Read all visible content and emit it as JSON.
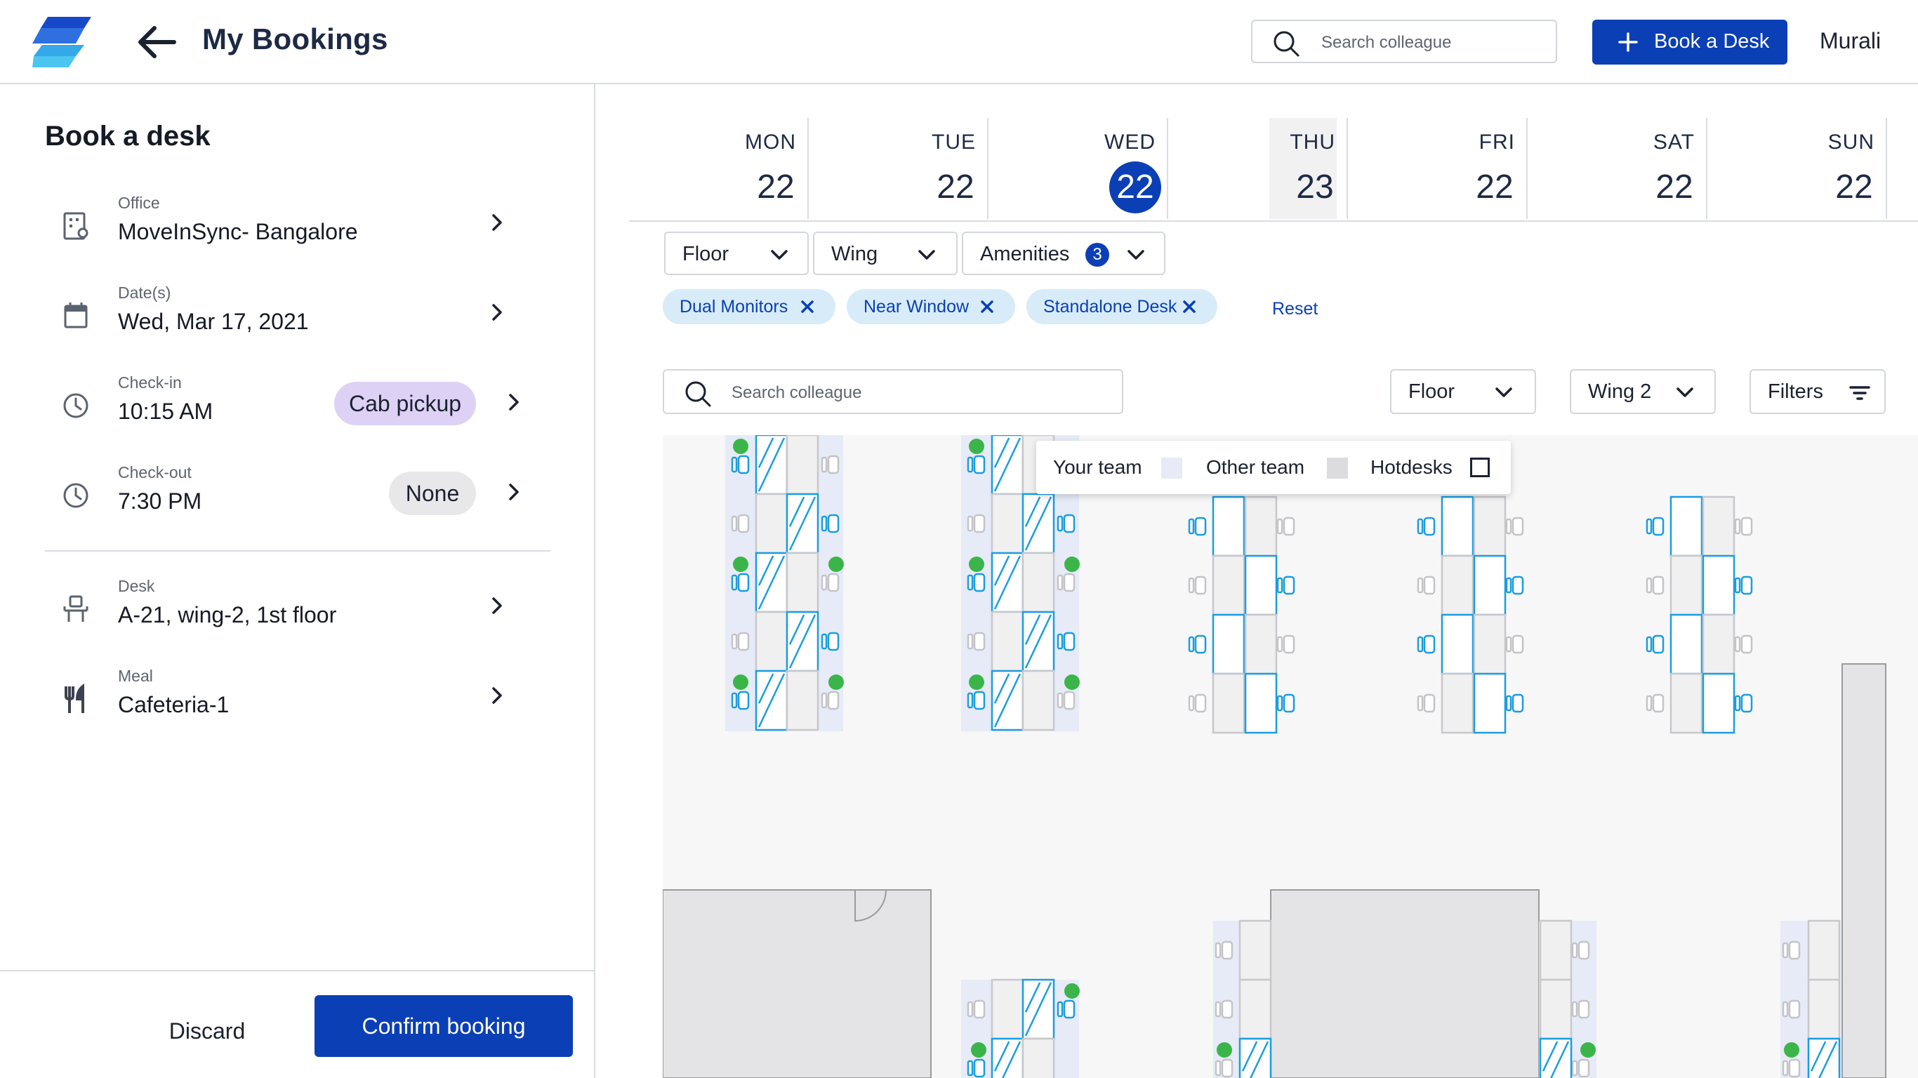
{
  "header": {
    "title": "My Bookings",
    "search_placeholder": "Search colleague",
    "book_desk_label": "Book a Desk",
    "user_name": "Murali"
  },
  "booking_form": {
    "title": "Book a desk",
    "office": {
      "label": "Office",
      "value": "MoveInSync- Bangalore"
    },
    "dates": {
      "label": "Date(s)",
      "value": "Wed, Mar 17, 2021"
    },
    "check_in": {
      "label": "Check-in",
      "value": "10:15 AM",
      "option": "Cab pickup"
    },
    "check_out": {
      "label": "Check-out",
      "value": "7:30 PM",
      "option": "None"
    },
    "desk": {
      "label": "Desk",
      "value": "A-21, wing-2, 1st floor"
    },
    "meal": {
      "label": "Meal",
      "value": "Cafeteria-1"
    },
    "discard_label": "Discard",
    "confirm_label": "Confirm booking"
  },
  "week": [
    {
      "day": "MON",
      "date": "22"
    },
    {
      "day": "TUE",
      "date": "22"
    },
    {
      "day": "WED",
      "date": "22",
      "selected": true
    },
    {
      "day": "THU",
      "date": "23",
      "today": true
    },
    {
      "day": "FRI",
      "date": "22"
    },
    {
      "day": "SAT",
      "date": "22"
    },
    {
      "day": "SUN",
      "date": "22"
    }
  ],
  "filters": {
    "floor_label": "Floor",
    "wing_label": "Wing",
    "amenities_label": "Amenities",
    "amenities_count": "3",
    "chips": [
      "Dual Monitors",
      "Near Window",
      "Standalone Desk"
    ],
    "reset_label": "Reset"
  },
  "map_toolbar": {
    "search_placeholder": "Search colleague",
    "floor_label": "Floor",
    "wing_label": "Wing 2",
    "filters_label": "Filters"
  },
  "legend": {
    "your_team": "Your team",
    "other_team": "Other team",
    "hotdesks": "Hotdesks"
  },
  "colors": {
    "primary": "#0b3fb5",
    "chip_bg": "#d7ecf8",
    "cab_pill_bg": "#ddd2f6",
    "none_pill_bg": "#e8e8ea",
    "desk_stroke": "#1a9de0",
    "your_team_zone": "#e6ebf7",
    "occupied_dot": "#3bb54a",
    "room_fill": "#e4e4e6",
    "map_bg": "#f7f7f8"
  }
}
